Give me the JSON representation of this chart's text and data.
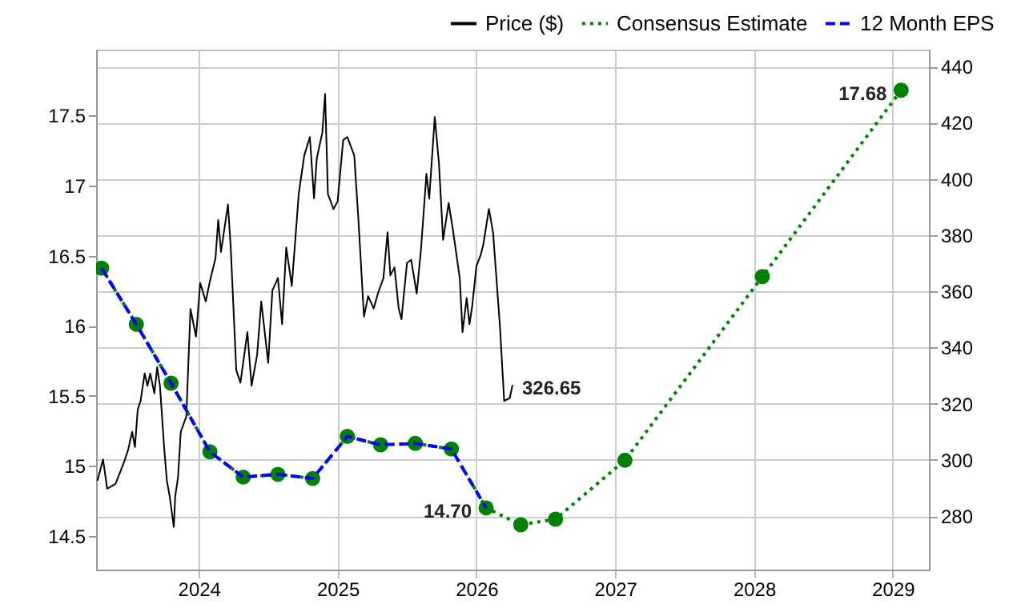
{
  "chart_data": {
    "type": "line",
    "x": [
      2023.3,
      2023.55,
      2023.8,
      2024.08,
      2024.32,
      2024.57,
      2024.82,
      2025.07,
      2025.31,
      2025.56,
      2025.82,
      2026.07,
      2026.32,
      2026.57,
      2027.07,
      2028.06,
      2029.06
    ],
    "xlim": [
      2023.26,
      2029.26
    ],
    "xticks": [
      2024,
      2025,
      2026,
      2027,
      2028,
      2029
    ],
    "ylim": [
      14.26,
      17.97
    ],
    "yticks": [
      14.5,
      15,
      15.5,
      16,
      16.5,
      17,
      17.5
    ],
    "y2lim": [
      261,
      446
    ],
    "y2ticks": [
      280,
      300,
      320,
      340,
      360,
      380,
      400,
      420,
      440
    ],
    "grid": true,
    "legend": "top right",
    "annotations": [
      {
        "text": "17.68",
        "x": 2029.06,
        "y": 17.68
      },
      {
        "text": "14.70",
        "x": 2026.07,
        "y": 14.7
      },
      "326.65"
    ],
    "series": [
      {
        "name": "Price ($)",
        "color": "#000000",
        "axis": "y2",
        "line_style": "solid",
        "marker": "none",
        "x": [
          2023.27,
          2023.31,
          2023.34,
          2023.4,
          2023.46,
          2023.49,
          2023.52,
          2023.54,
          2023.56,
          2023.58,
          2023.61,
          2023.63,
          2023.65,
          2023.68,
          2023.7,
          2023.72,
          2023.75,
          2023.77,
          2023.79,
          2023.82,
          2023.83,
          2023.85,
          2023.87,
          2023.91,
          2023.94,
          2023.98,
          2024.01,
          2024.05,
          2024.08,
          2024.12,
          2024.14,
          2024.16,
          2024.21,
          2024.23,
          2024.27,
          2024.3,
          2024.35,
          2024.38,
          2024.42,
          2024.45,
          2024.5,
          2024.53,
          2024.57,
          2024.6,
          2024.63,
          2024.67,
          2024.72,
          2024.76,
          2024.8,
          2024.83,
          2024.85,
          2024.89,
          2024.91,
          2024.93,
          2024.97,
          2025.0,
          2025.04,
          2025.07,
          2025.12,
          2025.15,
          2025.19,
          2025.22,
          2025.26,
          2025.29,
          2025.33,
          2025.36,
          2025.38,
          2025.41,
          2025.44,
          2025.46,
          2025.5,
          2025.53,
          2025.57,
          2025.6,
          2025.64,
          2025.66,
          2025.7,
          2025.73,
          2025.76,
          2025.8,
          2025.83,
          2025.88,
          2025.9,
          2025.93,
          2025.95,
          2025.97,
          2026.0,
          2026.03,
          2026.05,
          2026.09,
          2026.12,
          2026.17,
          2026.2,
          2026.24,
          2026.26
        ],
        "values": [
          292.6,
          300.2,
          289.8,
          291.5,
          299,
          303.5,
          310,
          304.6,
          318,
          320.9,
          330.8,
          326.4,
          330.8,
          323.7,
          333,
          326.4,
          304.6,
          292.6,
          287.1,
          276.2,
          287.1,
          293.7,
          310,
          315.5,
          353.7,
          343.9,
          363,
          356.4,
          363.6,
          371.7,
          385.4,
          374,
          390.9,
          375.6,
          331.9,
          327.5,
          345.5,
          326.4,
          337.3,
          356.4,
          334.6,
          360.3,
          364.7,
          348.3,
          375.6,
          361.9,
          394.7,
          408.4,
          414.9,
          393.1,
          407.3,
          416.5,
          430.2,
          394.7,
          389.3,
          392,
          413.8,
          414.9,
          408.3,
          385.4,
          351,
          358.3,
          353.9,
          359.2,
          364.7,
          381,
          365.7,
          368.5,
          353.9,
          350.1,
          370.1,
          371.2,
          359.2,
          374.5,
          401.8,
          393,
          422,
          405.6,
          378.3,
          391.4,
          382.1,
          364.7,
          345.5,
          357.6,
          348.3,
          354.9,
          369,
          372.8,
          376.7,
          389.3,
          381,
          347.2,
          321,
          322,
          326.7
        ]
      },
      {
        "name": "Consensus Estimate",
        "color": "#008000",
        "line_style": "dotted",
        "marker": "circle",
        "values": [
          16.41,
          16.01,
          15.59,
          15.1,
          14.92,
          14.94,
          14.91,
          15.21,
          15.15,
          15.16,
          15.12,
          14.7,
          14.58,
          14.62,
          15.04,
          16.35,
          17.68
        ]
      },
      {
        "name": "12 Month EPS",
        "color": "#0000ff",
        "line_style": "dashed",
        "marker": "none",
        "x": [
          2023.3,
          2023.55,
          2023.8,
          2024.08,
          2024.32,
          2024.57,
          2024.82,
          2025.07,
          2025.31,
          2025.56,
          2025.82,
          2026.07
        ],
        "values": [
          16.41,
          16.01,
          15.59,
          15.1,
          14.92,
          14.94,
          14.91,
          15.21,
          15.15,
          15.16,
          15.12,
          14.7
        ]
      }
    ]
  }
}
